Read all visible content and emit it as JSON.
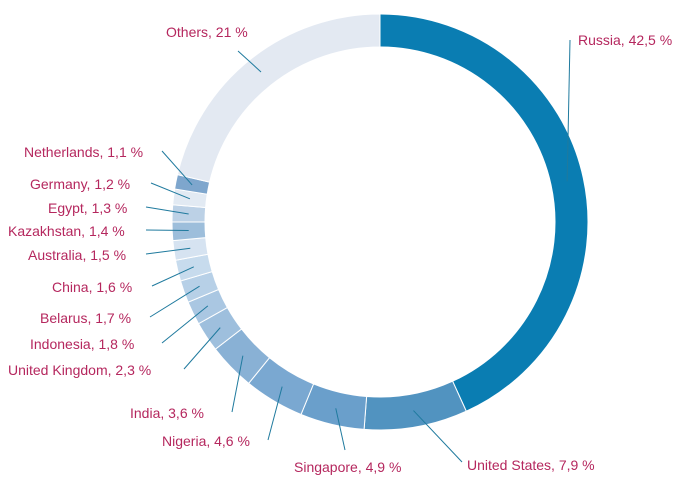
{
  "chart_data": {
    "type": "pie",
    "donut": true,
    "start": "12 o'clock",
    "direction": "clockwise",
    "label_color": "#b5275e",
    "leader_color": "#1f7a9e",
    "slices": [
      {
        "label": "Russia, 42,5 %",
        "name": "Russia",
        "value": 42.5,
        "color": "#0a7db2"
      },
      {
        "label": "United States, 7,9 %",
        "name": "United States",
        "value": 7.9,
        "color": "#5193c0"
      },
      {
        "label": "Singapore, 4,9 %",
        "name": "Singapore",
        "value": 4.9,
        "color": "#6a9fcb"
      },
      {
        "label": "Nigeria, 4,6 %",
        "name": "Nigeria",
        "value": 4.6,
        "color": "#7aa8d1"
      },
      {
        "label": "India, 3,6 %",
        "name": "India",
        "value": 3.6,
        "color": "#89b1d5"
      },
      {
        "label": "United Kingdom, 2,3 %",
        "name": "United Kingdom",
        "value": 2.3,
        "color": "#9ebfdd"
      },
      {
        "label": "Indonesia, 1,8 %",
        "name": "Indonesia",
        "value": 1.8,
        "color": "#aac7e2"
      },
      {
        "label": "Belarus, 1,7 %",
        "name": "Belarus",
        "value": 1.7,
        "color": "#b7d0e7"
      },
      {
        "label": "China, 1,6 %",
        "name": "China",
        "value": 1.6,
        "color": "#c7dbed"
      },
      {
        "label": "Australia, 1,5 %",
        "name": "Australia",
        "value": 1.5,
        "color": "#d6e3f1"
      },
      {
        "label": "Kazakhstan, 1,4 %",
        "name": "Kazakhstan",
        "value": 1.4,
        "color": "#9dbedb"
      },
      {
        "label": "Egypt, 1,3 %",
        "name": "Egypt",
        "value": 1.3,
        "color": "#bcd1e6"
      },
      {
        "label": "Germany, 1,2 %",
        "name": "Germany",
        "value": 1.2,
        "color": "#e2eaf3"
      },
      {
        "label": "Netherlands, 1,1 %",
        "name": "Netherlands",
        "value": 1.1,
        "color": "#7ea6cd"
      },
      {
        "label": "Others, 21 %",
        "name": "Others",
        "value": 21,
        "color": "#e3e9f2"
      }
    ]
  }
}
